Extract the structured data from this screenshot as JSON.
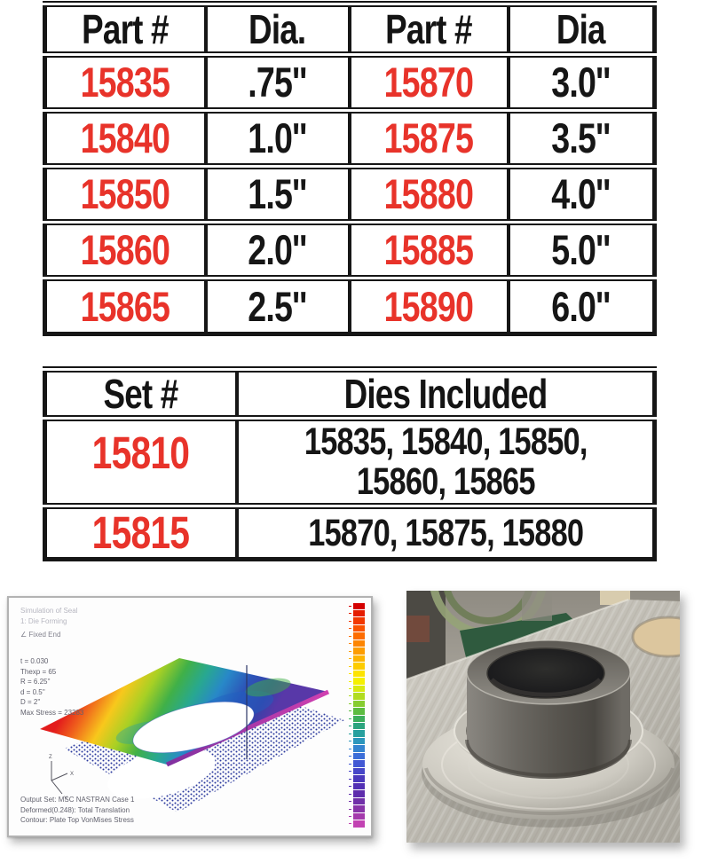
{
  "colors": {
    "accent_red": "#e8332a",
    "table_border": "#161616",
    "text_black": "#161616"
  },
  "part_table": {
    "headers": [
      "Part #",
      "Dia.",
      "Part #",
      "Dia"
    ],
    "rows": [
      [
        "15835",
        ".75''",
        "15870",
        "3.0''"
      ],
      [
        "15840",
        "1.0''",
        "15875",
        "3.5''"
      ],
      [
        "15850",
        "1.5''",
        "15880",
        "4.0''"
      ],
      [
        "15860",
        "2.0''",
        "15885",
        "5.0''"
      ],
      [
        "15865",
        "2.5''",
        "15890",
        "6.0''"
      ]
    ]
  },
  "set_table": {
    "headers": [
      "Set #",
      "Dies Included"
    ],
    "rows": [
      {
        "set": "15810",
        "dies_lines": [
          "15835, 15840, 15850,",
          "15860, 15865"
        ]
      },
      {
        "set": "15815",
        "dies_lines": [
          "15870, 15875, 15880"
        ]
      }
    ]
  },
  "fea": {
    "header_lines": [
      "Simulation of Seal",
      "1: Die Forming",
      "∠ Fixed End"
    ],
    "param_lines": [
      "t = 0.030",
      "Thexp = 65",
      "R = 6.25''",
      "d = 0.5''",
      "D = 2''",
      "Max Stress = 23283"
    ],
    "footer_lines": [
      "Output Set: MSC NASTRAN Case 1",
      "Deformed(0.248): Total Translation",
      "Contour: Plate Top VonMises Stress"
    ],
    "axis_labels": {
      "up": "Z",
      "right": "X",
      "down": "Y"
    },
    "colorbar_colors": [
      "#d40000",
      "#e51d00",
      "#f23800",
      "#fa5300",
      "#fd6c00",
      "#fd8500",
      "#fd9d00",
      "#fdb500",
      "#fdcc00",
      "#fde300",
      "#f5f000",
      "#d8ea10",
      "#b1dc20",
      "#86cc30",
      "#5cbc40",
      "#3cae5c",
      "#2ca47e",
      "#28a09e",
      "#2c96bc",
      "#3484d0",
      "#3c6ed8",
      "#4258d4",
      "#4646c8",
      "#4a38bc",
      "#5230b4",
      "#5e2cac",
      "#7030a8",
      "#8834a8",
      "#a43aac",
      "#c242b2"
    ]
  }
}
